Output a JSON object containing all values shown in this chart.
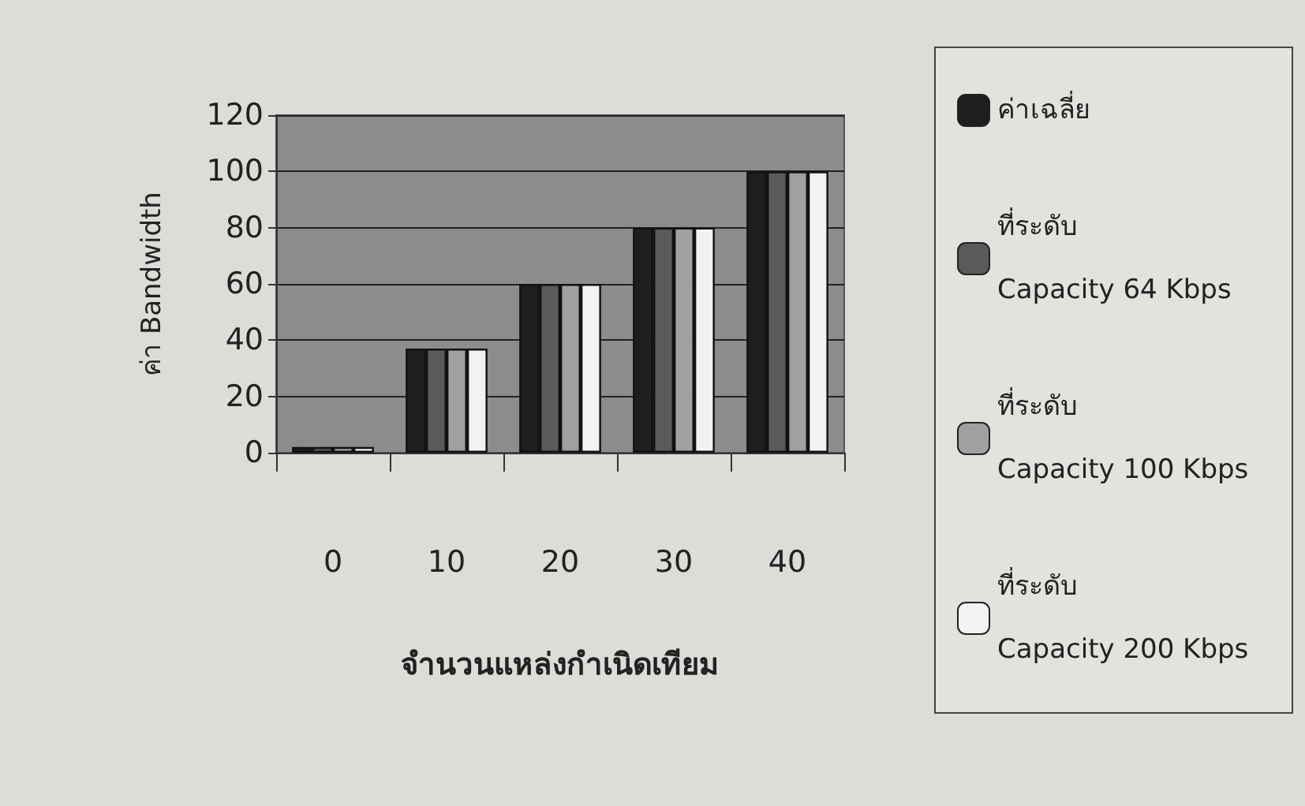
{
  "chart_data": {
    "type": "bar",
    "xlabel": "จำนวนแหล่งกำเนิดเทียม",
    "ylabel": "ค่า Bandwidth",
    "categories": [
      "0",
      "10",
      "20",
      "30",
      "40"
    ],
    "series": [
      {
        "name": "ค่าเฉลี่ย",
        "color": "#1e1e1e",
        "values": [
          2,
          37,
          60,
          80,
          100
        ]
      },
      {
        "name": "ที่ระดับ Capacity 64 Kbps",
        "color": "#5a5a5a",
        "values": [
          2,
          37,
          60,
          80,
          100
        ]
      },
      {
        "name": "ที่ระดับ Capacity 100 Kbps",
        "color": "#a0a0a0",
        "values": [
          2,
          37,
          60,
          80,
          100
        ]
      },
      {
        "name": "ที่ระดับ Capacity 200 Kbps",
        "color": "#f2f2f2",
        "values": [
          2,
          37,
          60,
          80,
          100
        ]
      }
    ],
    "ylim": [
      0,
      120
    ],
    "yticks": [
      0,
      20,
      40,
      60,
      80,
      100,
      120
    ],
    "grid": "y",
    "legend": "right"
  }
}
